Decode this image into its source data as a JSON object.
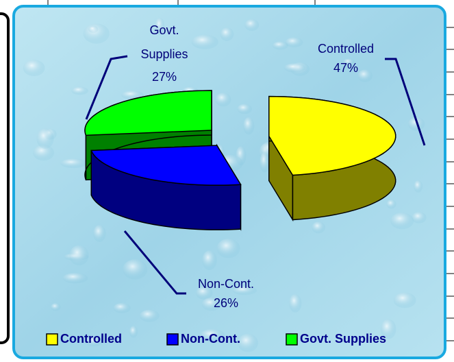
{
  "chart_data": {
    "type": "pie",
    "categories": [
      "Controlled",
      "Non-Cont.",
      "Govt. Supplies"
    ],
    "values": [
      47,
      26,
      27
    ],
    "value_labels": [
      "47%",
      "26%",
      "27%"
    ],
    "colors": [
      "#ffff00",
      "#0000ff",
      "#00ff00"
    ],
    "legend": "bottom"
  }
}
